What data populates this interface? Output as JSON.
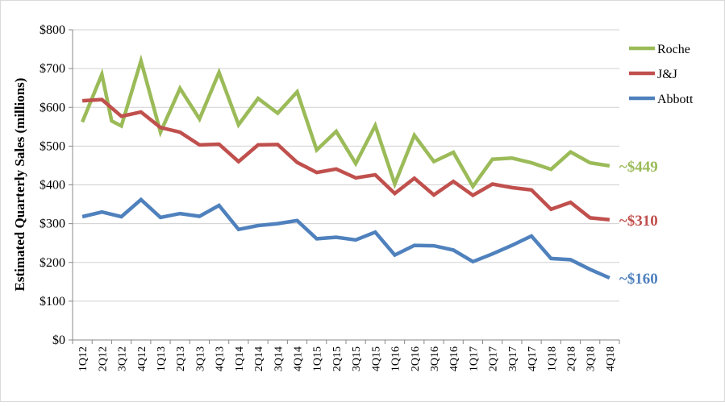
{
  "chart_data": {
    "type": "line",
    "title": "",
    "xlabel": "",
    "ylabel": "Estimated Quarterly Sales (millions)",
    "ylim": [
      0,
      800
    ],
    "y_ticks": [
      "$0",
      "$100",
      "$200",
      "$300",
      "$400",
      "$500",
      "$600",
      "$700",
      "$800"
    ],
    "y_tick_values": [
      0,
      100,
      200,
      300,
      400,
      500,
      600,
      700,
      800
    ],
    "grid": true,
    "legend": "top-right",
    "categories": [
      "1Q12",
      "2Q12",
      "3Q12",
      "4Q12",
      "1Q13",
      "2Q13",
      "3Q13",
      "4Q13",
      "1Q14",
      "2Q14",
      "3Q14",
      "4Q14",
      "1Q15",
      "2Q15",
      "3Q15",
      "4Q15",
      "1Q16",
      "2Q16",
      "3Q16",
      "4Q16",
      "1Q17",
      "2Q17",
      "3Q17",
      "4Q17",
      "1Q18",
      "2Q18",
      "3Q18",
      "4Q18"
    ],
    "series": [
      {
        "name": "Roche",
        "color": "#9BBB59",
        "end_label": "~$449",
        "values": [
          {
            "x": 0,
            "y": 562
          },
          {
            "x": 1,
            "y": 685
          },
          {
            "x": 1.5,
            "y": 565
          },
          {
            "x": 2,
            "y": 552
          },
          {
            "x": 3,
            "y": 720
          },
          {
            "x": 4,
            "y": 536
          },
          {
            "x": 4.5,
            "y": 592
          },
          {
            "x": 5,
            "y": 649
          },
          {
            "x": 6,
            "y": 570
          },
          {
            "x": 7,
            "y": 690
          },
          {
            "x": 8,
            "y": 555
          },
          {
            "x": 9,
            "y": 623
          },
          {
            "x": 10,
            "y": 585
          },
          {
            "x": 11,
            "y": 640
          },
          {
            "x": 12,
            "y": 490
          },
          {
            "x": 13,
            "y": 538
          },
          {
            "x": 14,
            "y": 455
          },
          {
            "x": 15,
            "y": 553
          },
          {
            "x": 16,
            "y": 402
          },
          {
            "x": 17,
            "y": 528
          },
          {
            "x": 18,
            "y": 460
          },
          {
            "x": 19,
            "y": 484
          },
          {
            "x": 20,
            "y": 396
          },
          {
            "x": 21,
            "y": 466
          },
          {
            "x": 22,
            "y": 469
          },
          {
            "x": 23,
            "y": 457
          },
          {
            "x": 24,
            "y": 440
          },
          {
            "x": 25,
            "y": 485
          },
          {
            "x": 26,
            "y": 457
          },
          {
            "x": 27,
            "y": 449
          }
        ]
      },
      {
        "name": "J&J",
        "color": "#C0504D",
        "end_label": "~$310",
        "values": [
          {
            "x": 0,
            "y": 617
          },
          {
            "x": 1,
            "y": 620
          },
          {
            "x": 2,
            "y": 577
          },
          {
            "x": 3,
            "y": 588
          },
          {
            "x": 4,
            "y": 548
          },
          {
            "x": 5,
            "y": 536
          },
          {
            "x": 6,
            "y": 503
          },
          {
            "x": 7,
            "y": 505
          },
          {
            "x": 8,
            "y": 460
          },
          {
            "x": 9,
            "y": 503
          },
          {
            "x": 10,
            "y": 504
          },
          {
            "x": 11,
            "y": 458
          },
          {
            "x": 12,
            "y": 432
          },
          {
            "x": 13,
            "y": 441
          },
          {
            "x": 14,
            "y": 418
          },
          {
            "x": 15,
            "y": 426
          },
          {
            "x": 16,
            "y": 378
          },
          {
            "x": 17,
            "y": 417
          },
          {
            "x": 18,
            "y": 374
          },
          {
            "x": 19,
            "y": 409
          },
          {
            "x": 20,
            "y": 373
          },
          {
            "x": 21,
            "y": 402
          },
          {
            "x": 22,
            "y": 393
          },
          {
            "x": 23,
            "y": 387
          },
          {
            "x": 24,
            "y": 337
          },
          {
            "x": 25,
            "y": 355
          },
          {
            "x": 26,
            "y": 315
          },
          {
            "x": 27,
            "y": 310
          }
        ]
      },
      {
        "name": "Abbott",
        "color": "#4F81BD",
        "end_label": "~$160",
        "values": [
          {
            "x": 0,
            "y": 318
          },
          {
            "x": 1,
            "y": 330
          },
          {
            "x": 2,
            "y": 318
          },
          {
            "x": 3,
            "y": 362
          },
          {
            "x": 4,
            "y": 316
          },
          {
            "x": 5,
            "y": 326
          },
          {
            "x": 6,
            "y": 319
          },
          {
            "x": 7,
            "y": 347
          },
          {
            "x": 8,
            "y": 285
          },
          {
            "x": 9,
            "y": 295
          },
          {
            "x": 10,
            "y": 300
          },
          {
            "x": 11,
            "y": 308
          },
          {
            "x": 12,
            "y": 261
          },
          {
            "x": 13,
            "y": 265
          },
          {
            "x": 14,
            "y": 258
          },
          {
            "x": 15,
            "y": 278
          },
          {
            "x": 16,
            "y": 219
          },
          {
            "x": 17,
            "y": 244
          },
          {
            "x": 18,
            "y": 243
          },
          {
            "x": 19,
            "y": 232
          },
          {
            "x": 20,
            "y": 202
          },
          {
            "x": 21,
            "y": 222
          },
          {
            "x": 22,
            "y": 244
          },
          {
            "x": 23,
            "y": 268
          },
          {
            "x": 24,
            "y": 210
          },
          {
            "x": 25,
            "y": 207
          },
          {
            "x": 26,
            "y": 182
          },
          {
            "x": 27,
            "y": 160
          }
        ]
      }
    ]
  }
}
